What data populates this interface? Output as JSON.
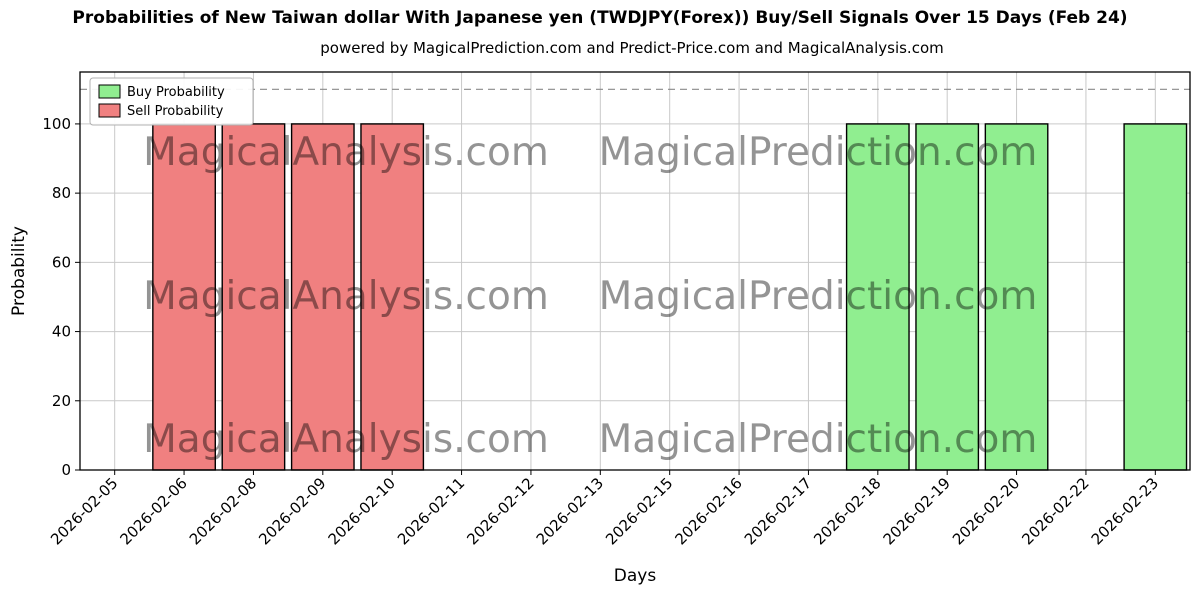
{
  "chart_data": {
    "type": "bar",
    "title": "Probabilities of New Taiwan dollar With Japanese yen (TWDJPY(Forex)) Buy/Sell Signals Over 15 Days (Feb 24)",
    "subtitle": "powered by MagicalPrediction.com and Predict-Price.com and MagicalAnalysis.com",
    "xlabel": "Days",
    "ylabel": "Probability",
    "ylim": [
      0,
      115
    ],
    "yticks": [
      0,
      20,
      40,
      60,
      80,
      100
    ],
    "grid": true,
    "dashed_guide_y": 110,
    "legend_position": "upper left",
    "bar_edge_color": "#000000",
    "categories": [
      "2026-02-05",
      "2026-02-06",
      "2026-02-08",
      "2026-02-09",
      "2026-02-10",
      "2026-02-11",
      "2026-02-12",
      "2026-02-13",
      "2026-02-15",
      "2026-02-16",
      "2026-02-17",
      "2026-02-18",
      "2026-02-19",
      "2026-02-20",
      "2026-02-22",
      "2026-02-23"
    ],
    "series": [
      {
        "name": "Buy Probability",
        "color": "#90ee90",
        "values": [
          0,
          0,
          0,
          0,
          0,
          0,
          0,
          0,
          0,
          0,
          0,
          100,
          100,
          100,
          0,
          100
        ]
      },
      {
        "name": "Sell Probability",
        "color": "#f08080",
        "values": [
          0,
          100,
          100,
          100,
          100,
          0,
          0,
          0,
          0,
          0,
          0,
          0,
          0,
          0,
          0,
          0
        ]
      }
    ],
    "watermarks": [
      "MagicalAnalysis.com",
      "MagicalPrediction.com"
    ]
  }
}
